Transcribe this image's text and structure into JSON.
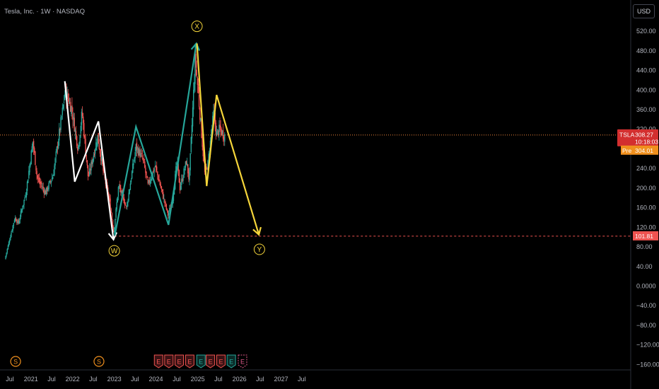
{
  "header": {
    "title": "Tesla, Inc. · 1W · NASDAQ"
  },
  "currency_button": "USD",
  "price_tags": {
    "symbol": "TSLA",
    "last_price": "308.27",
    "countdown": "10:18:03",
    "pre_label": "Pre",
    "pre_price": "304.01",
    "level_label": "101.81"
  },
  "colors": {
    "background": "#000000",
    "up": "#26a69a",
    "down": "#ef5350",
    "white_wave": "#ffffff",
    "teal_wave": "#26a69a",
    "yellow_wave": "#f5d53a",
    "price_line": "#f0883e",
    "level_line": "#ef5350",
    "pre_tag": "#f0901e",
    "price_tag": "#d32f2f"
  },
  "wave_labels": [
    "W",
    "X",
    "Y"
  ],
  "events": [
    {
      "type": "dividend",
      "label": "S",
      "date": "2020-08-20"
    },
    {
      "type": "dividend",
      "label": "S",
      "date": "2022-08-20"
    },
    {
      "type": "earnings-miss",
      "label": "E",
      "date": "2024-01-24"
    },
    {
      "type": "earnings-miss",
      "label": "E",
      "date": "2024-04-23"
    },
    {
      "type": "earnings-miss",
      "label": "E",
      "date": "2024-07-23"
    },
    {
      "type": "earnings-miss",
      "label": "E",
      "date": "2024-10-23"
    },
    {
      "type": "earnings-beat",
      "label": "E",
      "date": "2025-01-29"
    },
    {
      "type": "earnings-miss",
      "label": "E",
      "date": "2025-04-22"
    },
    {
      "type": "earnings-miss",
      "label": "E",
      "date": "2025-07-23"
    },
    {
      "type": "earnings-beat",
      "label": "E",
      "date": "2025-10-22"
    },
    {
      "type": "earnings-upcoming",
      "label": "E",
      "date": "2026-01-28"
    }
  ],
  "chart_data": {
    "type": "candlestick",
    "title": "Tesla, Inc. · 1W · NASDAQ",
    "x_ticks": [
      "Jul",
      "2021",
      "Jul",
      "2022",
      "Jul",
      "2023",
      "Jul",
      "2024",
      "Jul",
      "2025",
      "Jul",
      "2026",
      "Jul",
      "2027",
      "Jul"
    ],
    "x_tick_dates": [
      "2020-07-01",
      "2021-01-01",
      "2021-07-01",
      "2022-01-01",
      "2022-07-01",
      "2023-01-01",
      "2023-07-01",
      "2024-01-01",
      "2024-07-01",
      "2025-01-01",
      "2025-07-01",
      "2026-01-01",
      "2026-07-01",
      "2027-01-01",
      "2027-07-01"
    ],
    "y_ticks": [
      520,
      480,
      440,
      400,
      360,
      320,
      280,
      240,
      200,
      160,
      120,
      80,
      40,
      0,
      -40,
      -80,
      -120,
      -160
    ],
    "y_tick_labels": [
      "520.00",
      "480.00",
      "440.00",
      "400.00",
      "360.00",
      "320.00",
      "280.00",
      "240.00",
      "200.00",
      "160.00",
      "120.00",
      "80.00",
      "40.00",
      "0.0000",
      "−40.00",
      "−80.00",
      "−120.00",
      "−160.00"
    ],
    "ylim": [
      -170,
      565
    ],
    "last_price": 308.27,
    "pre_market_price": 304.01,
    "horizontal_level": 101.81,
    "price_anchors": [
      {
        "date": "2020-05-25",
        "price": 55
      },
      {
        "date": "2020-08-20",
        "price": 140
      },
      {
        "date": "2020-09-20",
        "price": 128
      },
      {
        "date": "2020-11-25",
        "price": 190
      },
      {
        "date": "2021-01-25",
        "price": 295
      },
      {
        "date": "2021-03-05",
        "price": 220
      },
      {
        "date": "2021-05-15",
        "price": 190
      },
      {
        "date": "2021-07-20",
        "price": 225
      },
      {
        "date": "2021-10-20",
        "price": 370
      },
      {
        "date": "2021-11-05",
        "price": 400
      },
      {
        "date": "2022-01-01",
        "price": 360
      },
      {
        "date": "2022-02-25",
        "price": 280
      },
      {
        "date": "2022-04-01",
        "price": 355
      },
      {
        "date": "2022-05-25",
        "price": 220
      },
      {
        "date": "2022-08-15",
        "price": 305
      },
      {
        "date": "2022-10-10",
        "price": 225
      },
      {
        "date": "2022-12-01",
        "price": 170
      },
      {
        "date": "2023-01-03",
        "price": 110
      },
      {
        "date": "2023-02-15",
        "price": 205
      },
      {
        "date": "2023-04-25",
        "price": 160
      },
      {
        "date": "2023-07-18",
        "price": 285
      },
      {
        "date": "2023-09-20",
        "price": 255
      },
      {
        "date": "2023-10-30",
        "price": 205
      },
      {
        "date": "2024-01-01",
        "price": 245
      },
      {
        "date": "2024-04-22",
        "price": 145
      },
      {
        "date": "2024-06-01",
        "price": 175
      },
      {
        "date": "2024-07-10",
        "price": 255
      },
      {
        "date": "2024-08-05",
        "price": 200
      },
      {
        "date": "2024-10-01",
        "price": 255
      },
      {
        "date": "2024-10-25",
        "price": 215
      },
      {
        "date": "2024-12-17",
        "price": 465
      },
      {
        "date": "2025-01-10",
        "price": 400
      },
      {
        "date": "2025-03-10",
        "price": 230
      },
      {
        "date": "2025-04-07",
        "price": 250
      },
      {
        "date": "2025-05-28",
        "price": 355
      },
      {
        "date": "2025-06-20",
        "price": 310
      },
      {
        "date": "2025-07-20",
        "price": 320
      },
      {
        "date": "2025-08-25",
        "price": 308
      }
    ],
    "annotations": {
      "white_wave": [
        {
          "date": "2021-10-25",
          "price": 418
        },
        {
          "date": "2022-01-20",
          "price": 213
        },
        {
          "date": "2022-08-15",
          "price": 336
        },
        {
          "date": "2022-12-25",
          "price": 95
        }
      ],
      "teal_wave": [
        {
          "date": "2023-01-05",
          "price": 103
        },
        {
          "date": "2023-07-10",
          "price": 325
        },
        {
          "date": "2024-04-20",
          "price": 125
        },
        {
          "date": "2024-12-20",
          "price": 495
        }
      ],
      "yellow_wave": [
        {
          "date": "2024-12-25",
          "price": 495
        },
        {
          "date": "2025-03-20",
          "price": 204
        },
        {
          "date": "2025-06-15",
          "price": 390
        },
        {
          "date": "2026-06-20",
          "price": 105
        }
      ],
      "wave_label_points": [
        {
          "label": "W",
          "date": "2023-01-01",
          "price": 72
        },
        {
          "label": "X",
          "date": "2024-12-25",
          "price": 530
        },
        {
          "label": "Y",
          "date": "2026-06-25",
          "price": 75
        }
      ]
    }
  }
}
